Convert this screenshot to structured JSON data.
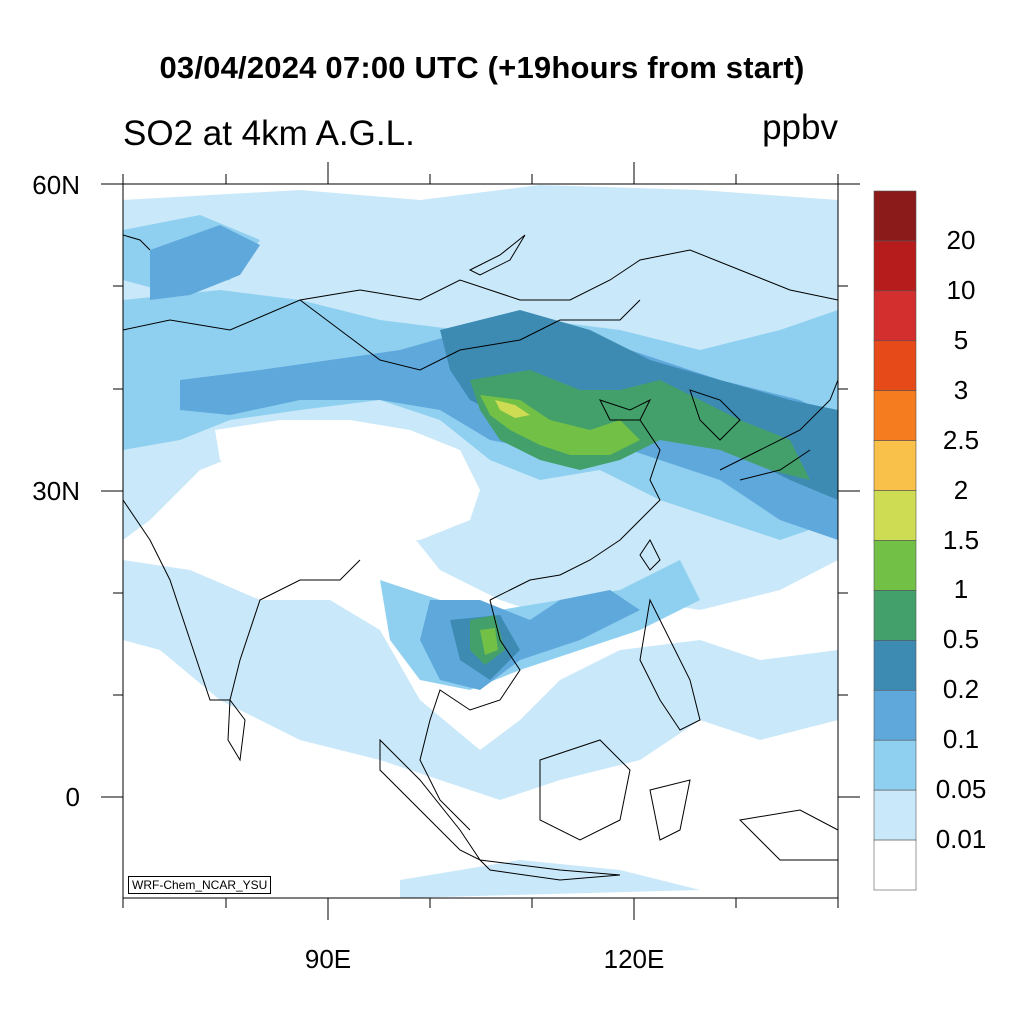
{
  "title": "03/04/2024 07:00 UTC (+19hours from start)",
  "left_title": "SO2 at 4km A.G.L.",
  "units": "ppbv",
  "model_label": "WRF-Chem_NCAR_YSU",
  "lat_labels": [
    "60N",
    "30N",
    "0"
  ],
  "lon_labels": [
    "90E",
    "120E"
  ],
  "colorbar": {
    "levels": [
      "20",
      "10",
      "5",
      "3",
      "2.5",
      "2",
      "1.5",
      "1",
      "0.5",
      "0.2",
      "0.1",
      "0.05",
      "0.01"
    ],
    "colors": [
      "#8b1a1a",
      "#b71c1c",
      "#d32f2f",
      "#e64a19",
      "#f57c1f",
      "#f9c04a",
      "#cddc52",
      "#72c046",
      "#43a06a",
      "#3d8bb3",
      "#5fa8dc",
      "#8fd0f0",
      "#c9e8f9",
      "#ffffff"
    ]
  },
  "map_colors": {
    "background": "#ffffff",
    "c001": "#c9e8f9",
    "c005": "#8fd0f0",
    "c01": "#5fa8dc",
    "c02": "#3d8bb3",
    "c05": "#43a06a",
    "c1": "#72c046",
    "c15": "#cddc52"
  }
}
